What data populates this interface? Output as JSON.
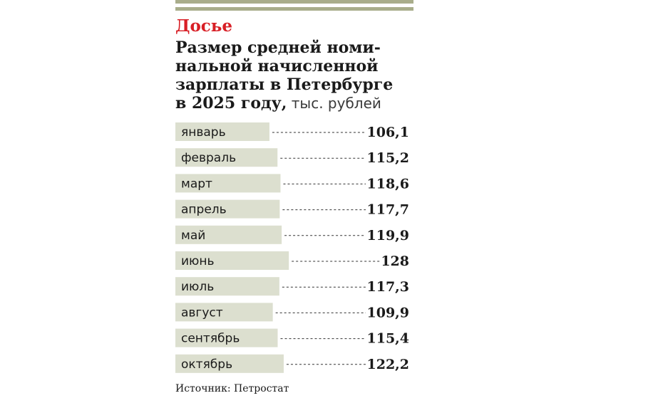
{
  "header": {
    "kicker": "Досье",
    "title_lines": [
      "Размер средней номи-",
      "нальной начисленной",
      "зарплаты в Петербурге",
      "в 2025 году,"
    ],
    "unit": " тыс. рублей"
  },
  "source": "Источник: Петростат",
  "colors": {
    "accent": "#d81f26",
    "rule": "#a9ad8b",
    "bar": "#dcdfcf",
    "text": "#1a1a1a"
  },
  "chart_data": {
    "type": "bar",
    "orientation": "horizontal",
    "title": "Размер средней номинальной начисленной зарплаты в Петербурге в 2025 году, тыс. рублей",
    "categories": [
      "январь",
      "февраль",
      "март",
      "апрель",
      "май",
      "июнь",
      "июль",
      "август",
      "сентябрь",
      "октябрь"
    ],
    "values": [
      106.1,
      115.2,
      118.6,
      117.7,
      119.9,
      128,
      117.3,
      109.9,
      115.4,
      122.2
    ],
    "value_labels": [
      "106,1",
      "115,2",
      "118,6",
      "117,7",
      "119,9",
      "128",
      "117,3",
      "109,9",
      "115,4",
      "122,2"
    ],
    "xlim": [
      0,
      128
    ],
    "grid": false,
    "legend": "none"
  }
}
